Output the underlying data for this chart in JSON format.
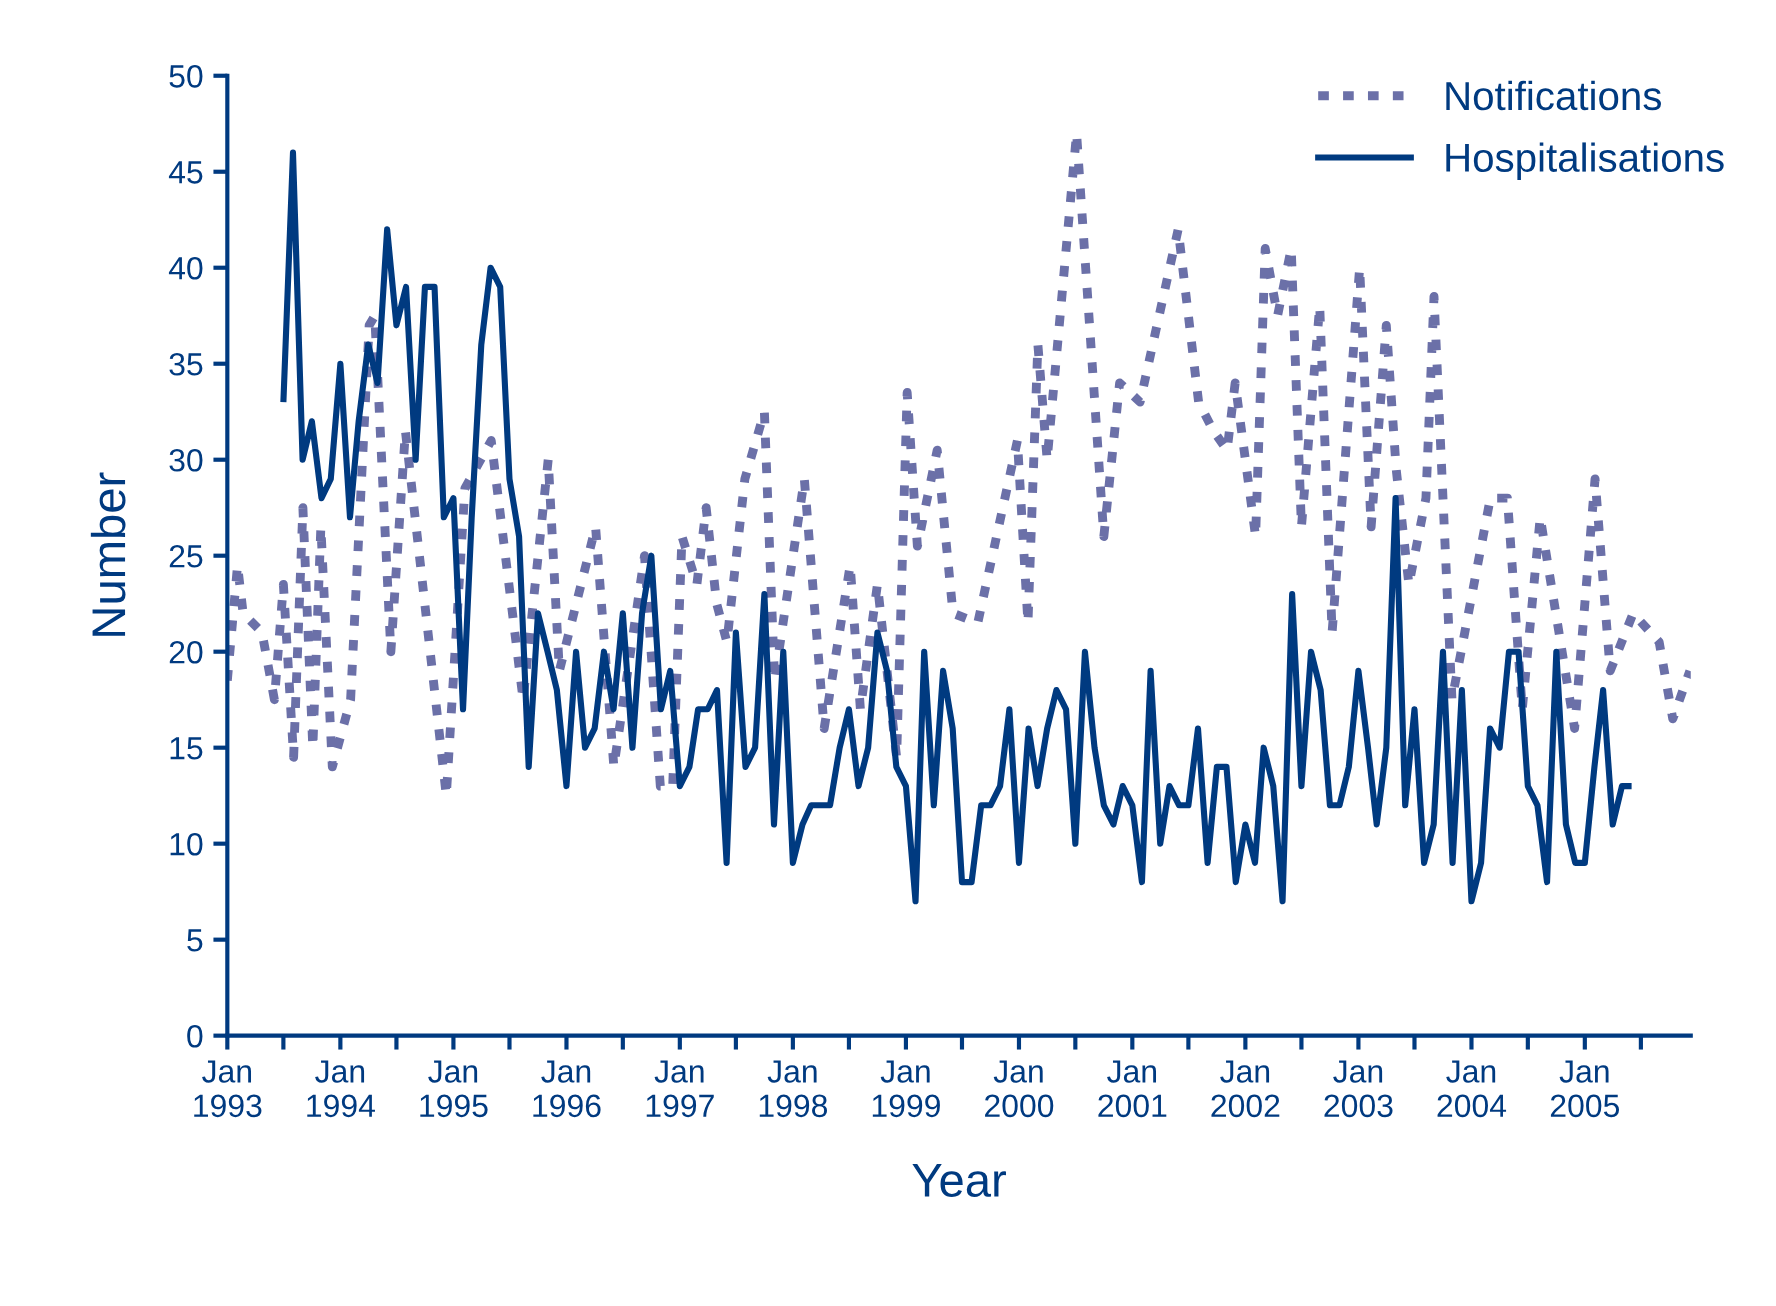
{
  "chart_data": {
    "type": "line",
    "xlabel": "Year",
    "ylabel": "Number",
    "xlim": [
      "1993-01-01",
      "2005-12-09"
    ],
    "ylim": [
      0,
      50
    ],
    "xticks": [
      {
        "value": "1993-01",
        "label": "Jan\n1993"
      },
      {
        "value": "1993-07",
        "label": null
      },
      {
        "value": "1994-01",
        "label": "Jan\n1994"
      },
      {
        "value": "1994-07",
        "label": null
      },
      {
        "value": "1995-01",
        "label": "Jan\n1995"
      },
      {
        "value": "1995-07",
        "label": null
      },
      {
        "value": "1996-01",
        "label": "Jan\n1996"
      },
      {
        "value": "1996-07",
        "label": null
      },
      {
        "value": "1997-01",
        "label": "Jan\n1997"
      },
      {
        "value": "1997-07",
        "label": null
      },
      {
        "value": "1998-01",
        "label": "Jan\n1998"
      },
      {
        "value": "1998-07",
        "label": null
      },
      {
        "value": "1999-01",
        "label": "Jan\n1999"
      },
      {
        "value": "1999-07",
        "label": null
      },
      {
        "value": "2000-01",
        "label": "Jan\n2000"
      },
      {
        "value": "2000-07",
        "label": null
      },
      {
        "value": "2001-01",
        "label": "Jan\n2001"
      },
      {
        "value": "2001-07",
        "label": null
      },
      {
        "value": "2002-01",
        "label": "Jan\n2002"
      },
      {
        "value": "2002-07",
        "label": null
      },
      {
        "value": "2003-01",
        "label": "Jan\n2003"
      },
      {
        "value": "2003-07",
        "label": null
      },
      {
        "value": "2004-01",
        "label": "Jan\n2004"
      },
      {
        "value": "2004-07",
        "label": null
      },
      {
        "value": "2005-01",
        "label": "Jan\n2005"
      },
      {
        "value": "2005-07",
        "label": null
      }
    ],
    "yticks": [
      0,
      5,
      10,
      15,
      20,
      25,
      30,
      35,
      40,
      45,
      50
    ],
    "grid": false,
    "legend": "top right",
    "marker": "none",
    "series": [
      {
        "name": "Notifications",
        "color": "#6b70a8",
        "line_style": "dotted",
        "x": [
          "1993-01-01",
          "1993-01-12",
          "1993-01-23",
          "1993-02-03",
          "1993-02-21",
          "1993-04-23",
          "1993-06-02",
          "1993-07-01",
          "1993-08-03",
          "1993-09-02",
          "1993-10-04",
          "1993-10-30",
          "1993-12-06",
          "1994-02-03",
          "1994-04-04",
          "1994-04-22",
          "1994-06-13",
          "1994-07-30",
          "1994-12-09",
          "1995-02-07",
          "1995-05-03",
          "1995-08-14",
          "1995-11-03",
          "1995-12-09",
          "1996-04-04",
          "1996-06-02",
          "1996-09-09",
          "1996-10-30",
          "1996-12-09",
          "1997-01-08",
          "1997-02-25",
          "1997-03-27",
          "1997-04-30",
          "1997-06-02",
          "1997-07-30",
          "1997-10-01",
          "1997-11-03",
          "1998-02-07",
          "1998-04-12",
          "1998-07-05",
          "1998-08-07",
          "1998-10-01",
          "1998-12-02",
          "1999-01-05",
          "1999-02-07",
          "1999-04-12",
          "1999-06-02",
          "1999-08-21",
          "1999-12-27",
          "2000-01-30",
          "2000-03-02",
          "2000-04-01",
          "2000-07-05",
          "2000-10-01",
          "2000-11-21",
          "2001-01-26",
          "2001-05-29",
          "2001-08-03",
          "2001-09-20",
          "2001-11-03",
          "2001-11-29",
          "2002-02-03",
          "2002-03-06",
          "2002-04-15",
          "2002-05-29",
          "2002-07-01",
          "2002-08-29",
          "2002-10-08",
          "2003-01-05",
          "2003-02-11",
          "2003-04-01",
          "2003-05-03",
          "2003-06-13",
          "2003-08-07",
          "2003-09-02",
          "2003-10-30",
          "2004-03-02",
          "2004-04-26",
          "2004-06-13",
          "2004-08-10",
          "2004-11-29",
          "2005-02-03",
          "2005-03-24",
          "2005-06-06",
          "2005-08-29",
          "2005-10-12",
          "2005-12-06"
        ],
        "values": [
          18.5,
          20.5,
          22.5,
          24.5,
          22,
          21,
          17.5,
          23.5,
          14.5,
          27.5,
          15,
          26.5,
          14,
          17.5,
          37,
          37.5,
          20,
          31.5,
          12.5,
          28.5,
          31,
          17.5,
          30,
          19,
          26.5,
          14,
          25,
          13,
          13,
          26,
          23.5,
          27.5,
          22.5,
          20.5,
          29,
          32.5,
          18.5,
          29,
          16,
          24.5,
          17,
          23.5,
          14.5,
          33.5,
          25.5,
          30.5,
          22,
          21.5,
          31,
          21.5,
          36,
          30,
          47,
          26,
          34,
          33,
          42,
          33,
          31.5,
          30.5,
          34,
          26,
          41,
          37.5,
          41,
          26.5,
          38,
          21,
          40,
          26.5,
          37,
          29.5,
          23.5,
          28,
          38.5,
          17.5,
          28,
          28,
          17,
          27,
          16,
          29,
          19,
          22,
          20.5,
          16.5,
          19
        ]
      },
      {
        "name": "Hospitalisations",
        "color": "#003a80",
        "line_style": "solid",
        "x": [
          "1993-07",
          "1993-08",
          "1993-09",
          "1993-10",
          "1993-11",
          "1993-12",
          "1994-01",
          "1994-02",
          "1994-03",
          "1994-04",
          "1994-05",
          "1994-06",
          "1994-07",
          "1994-08",
          "1994-09",
          "1994-10",
          "1994-11",
          "1994-12",
          "1995-01",
          "1995-02",
          "1995-03",
          "1995-04",
          "1995-05",
          "1995-06",
          "1995-07",
          "1995-08",
          "1995-09",
          "1995-10",
          "1995-11",
          "1995-12",
          "1996-01",
          "1996-02",
          "1996-03",
          "1996-04",
          "1996-05",
          "1996-06",
          "1996-07",
          "1996-08",
          "1996-09",
          "1996-10",
          "1996-11",
          "1996-12",
          "1997-01",
          "1997-02",
          "1997-03",
          "1997-04",
          "1997-05",
          "1997-06",
          "1997-07",
          "1997-08",
          "1997-09",
          "1997-10",
          "1997-11",
          "1997-12",
          "1998-01",
          "1998-02",
          "1998-03",
          "1998-04",
          "1998-05",
          "1998-06",
          "1998-07",
          "1998-08",
          "1998-09",
          "1998-10",
          "1998-11",
          "1998-12",
          "1999-01",
          "1999-02",
          "1999-03",
          "1999-04",
          "1999-05",
          "1999-06",
          "1999-07",
          "1999-08",
          "1999-09",
          "1999-10",
          "1999-11",
          "1999-12",
          "2000-01",
          "2000-02",
          "2000-03",
          "2000-04",
          "2000-05",
          "2000-06",
          "2000-07",
          "2000-08",
          "2000-09",
          "2000-10",
          "2000-11",
          "2000-12",
          "2001-01",
          "2001-02",
          "2001-03",
          "2001-04",
          "2001-05",
          "2001-06",
          "2001-07",
          "2001-08",
          "2001-09",
          "2001-10",
          "2001-11",
          "2001-12",
          "2002-01",
          "2002-02",
          "2002-03",
          "2002-04",
          "2002-05",
          "2002-06",
          "2002-07",
          "2002-08",
          "2002-09",
          "2002-10",
          "2002-11",
          "2002-12",
          "2003-01",
          "2003-02",
          "2003-03",
          "2003-04",
          "2003-05",
          "2003-06",
          "2003-07",
          "2003-08",
          "2003-09",
          "2003-10",
          "2003-11",
          "2003-12",
          "2004-01",
          "2004-02",
          "2004-03",
          "2004-04",
          "2004-05",
          "2004-06",
          "2004-07",
          "2004-08",
          "2004-09",
          "2004-10",
          "2004-11",
          "2004-12",
          "2005-01",
          "2005-02",
          "2005-03",
          "2005-04",
          "2005-05",
          "2005-06"
        ],
        "values": [
          33,
          46,
          30,
          32,
          28,
          29,
          35,
          27,
          32,
          36,
          34,
          42,
          37,
          39,
          30,
          39,
          39,
          27,
          28,
          17,
          27,
          36,
          40,
          39,
          29,
          26,
          14,
          22,
          20,
          18,
          13,
          20,
          15,
          16,
          20,
          17,
          22,
          15,
          22,
          25,
          17,
          19,
          13,
          14,
          17,
          17,
          18,
          9,
          21,
          14,
          15,
          23,
          11,
          20,
          9,
          11,
          12,
          12,
          12,
          15,
          17,
          13,
          15,
          21,
          19,
          14,
          13,
          7,
          20,
          12,
          19,
          16,
          8,
          8,
          12,
          12,
          13,
          17,
          9,
          16,
          13,
          16,
          18,
          17,
          10,
          20,
          15,
          12,
          11,
          13,
          12,
          8,
          19,
          10,
          13,
          12,
          12,
          16,
          9,
          14,
          14,
          8,
          11,
          9,
          15,
          13,
          7,
          23,
          13,
          20,
          18,
          12,
          12,
          14,
          19,
          15,
          11,
          15,
          28,
          12,
          17,
          9,
          11,
          20,
          9,
          18,
          7,
          9,
          16,
          15,
          20,
          20,
          13,
          12,
          8,
          20,
          11,
          9,
          9,
          14,
          18,
          11,
          13,
          13
        ]
      }
    ]
  }
}
